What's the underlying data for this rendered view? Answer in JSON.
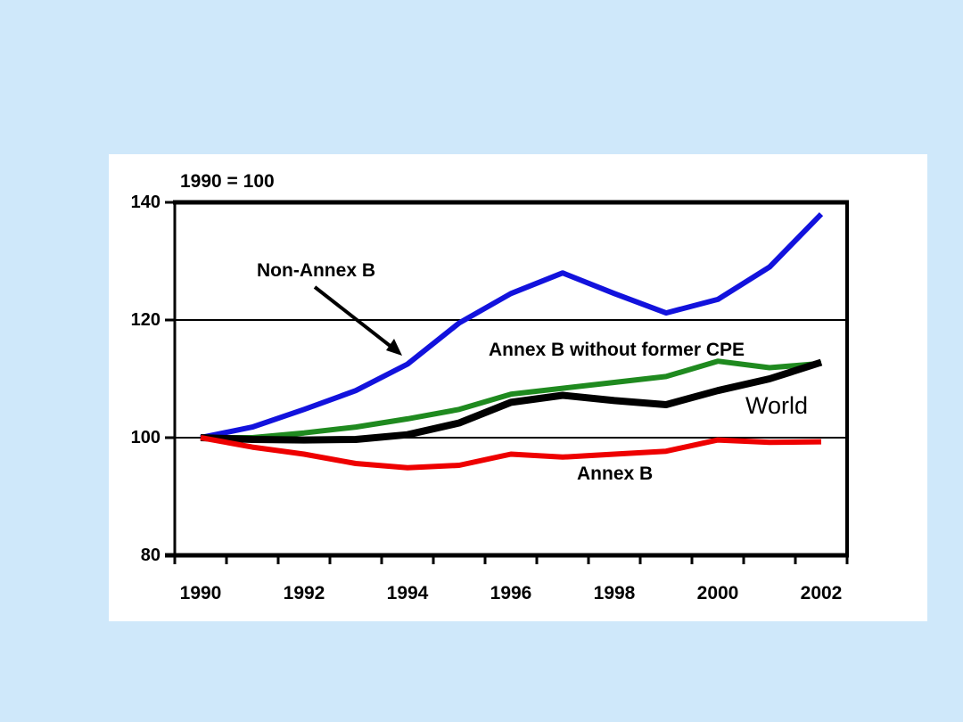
{
  "colors": {
    "background": "#cfe8fa",
    "panel": "#ffffff",
    "axis": "#000000"
  },
  "chart_data": {
    "type": "line",
    "title": "1990 = 100",
    "x": [
      1990,
      1991,
      1992,
      1993,
      1994,
      1995,
      1996,
      1997,
      1998,
      1999,
      2000,
      2001,
      2002
    ],
    "x_tick_labels": [
      "1990",
      "1992",
      "1994",
      "1996",
      "1998",
      "2000",
      "2002"
    ],
    "y_tick_labels": [
      "140",
      "120",
      "100",
      "80"
    ],
    "y_ticks": [
      140,
      120,
      100,
      80
    ],
    "ylim": [
      80,
      140
    ],
    "gridlines_at": [
      100,
      120
    ],
    "grid": "horizontal gridlines at 100 and 120 only",
    "legend": "none (series labeled directly on plot)",
    "series": [
      {
        "name": "Non-Annex B",
        "color": "#1212dd",
        "stroke_width": 6,
        "values": [
          100,
          101.8,
          104.8,
          108,
          112.5,
          119.5,
          124.5,
          128,
          124.5,
          121.2,
          123.5,
          129,
          138
        ]
      },
      {
        "name": "Annex B without former CPE",
        "color": "#1f8a1f",
        "stroke_width": 6,
        "values": [
          100,
          100,
          100.8,
          101.8,
          103.2,
          104.8,
          107.4,
          108.4,
          109.4,
          110.4,
          113,
          111.9,
          112.6
        ]
      },
      {
        "name": "World",
        "color": "#000000",
        "stroke_width": 8,
        "values": [
          100,
          99.7,
          99.6,
          99.7,
          100.5,
          102.5,
          106,
          107.2,
          106.3,
          105.6,
          108,
          110,
          112.8
        ]
      },
      {
        "name": "Annex B",
        "color": "#ee0000",
        "stroke_width": 6,
        "values": [
          100,
          98.4,
          97.2,
          95.6,
          94.9,
          95.3,
          97.2,
          96.7,
          97.2,
          97.7,
          99.6,
          99.2,
          99.3
        ]
      }
    ],
    "annotations": [
      {
        "text": "Non-Annex B",
        "target_series": "Non-Annex B",
        "has_arrow": true
      },
      {
        "text": "Annex B without former CPE",
        "target_series": "Annex B without former CPE",
        "has_arrow": false
      },
      {
        "text": "World",
        "target_series": "World",
        "has_arrow": false
      },
      {
        "text": "Annex B",
        "target_series": "Annex B",
        "has_arrow": false
      }
    ]
  }
}
